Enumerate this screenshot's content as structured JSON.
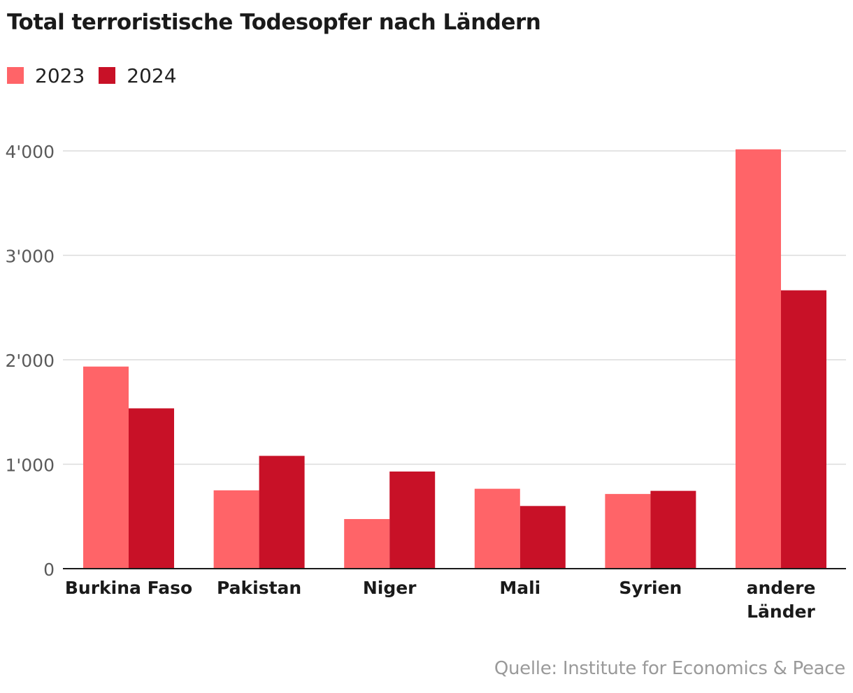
{
  "chart_data": {
    "type": "bar",
    "title": "Total terroristische Todesopfer nach Ländern",
    "categories": [
      [
        "Burkina Faso"
      ],
      [
        "Pakistan"
      ],
      [
        "Niger"
      ],
      [
        "Mali"
      ],
      [
        "Syrien"
      ],
      [
        "andere",
        "Länder"
      ]
    ],
    "series": [
      {
        "name": "2023",
        "color": "#ff6468",
        "values": [
          1935,
          750,
          475,
          765,
          715,
          4015
        ]
      },
      {
        "name": "2024",
        "color": "#c81127",
        "values": [
          1535,
          1080,
          930,
          600,
          745,
          2665
        ]
      }
    ],
    "ylim": [
      0,
      4000
    ],
    "yticks": [
      0,
      1000,
      2000,
      3000,
      4000
    ],
    "ytick_labels": [
      "0",
      "1'000",
      "2'000",
      "3'000",
      "4'000"
    ],
    "xlabel": "",
    "ylabel": "",
    "legend_position": "top-left",
    "grid": true,
    "source": "Quelle: Institute for Economics & Peace"
  }
}
